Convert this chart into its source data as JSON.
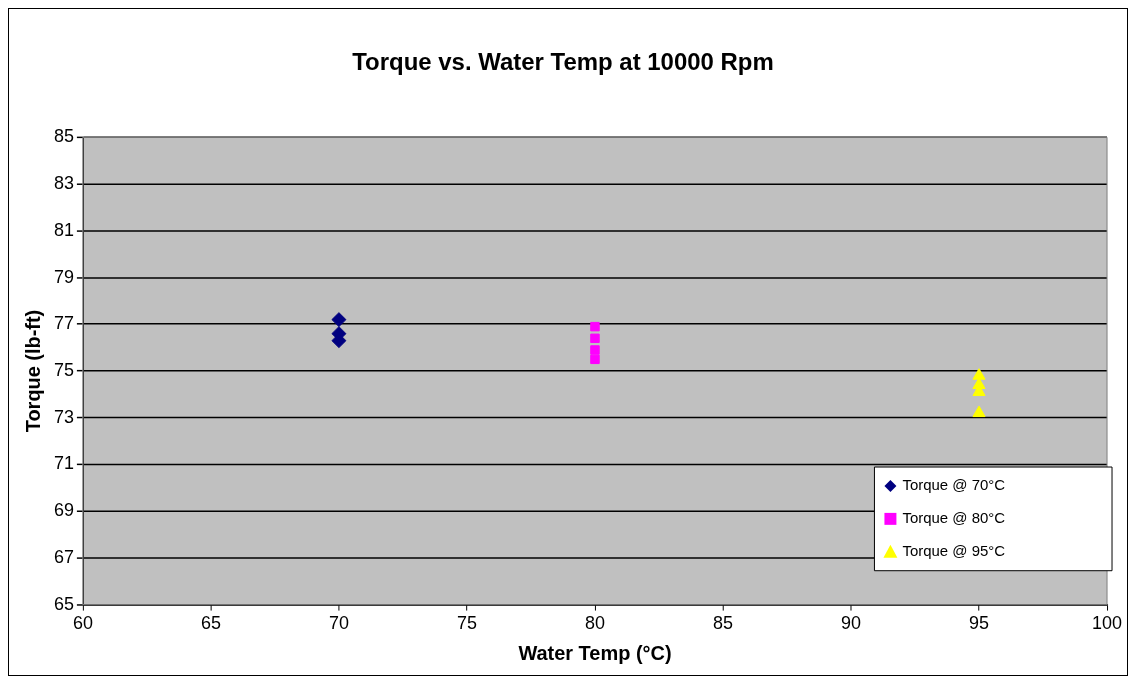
{
  "chart_data": {
    "type": "scatter",
    "title": "Torque vs. Water Temp at 10000 Rpm",
    "xlabel": "Water Temp (°C)",
    "ylabel": "Torque (lb-ft)",
    "xlim": [
      60,
      100
    ],
    "xticks": [
      60,
      65,
      70,
      75,
      80,
      85,
      90,
      95,
      100
    ],
    "ylim": [
      65,
      85
    ],
    "yticks": [
      65,
      67,
      69,
      71,
      73,
      75,
      77,
      79,
      81,
      83,
      85
    ],
    "grid": "y",
    "legend": "bottom right",
    "series": [
      {
        "name": "Torque @ 70°C",
        "color": "#000080",
        "marker": "diamond",
        "x": [
          70,
          70,
          70
        ],
        "values": [
          77.2,
          76.6,
          76.3
        ]
      },
      {
        "name": "Torque @ 80°C",
        "color": "#ff00ff",
        "marker": "square",
        "x": [
          80,
          80,
          80,
          80
        ],
        "values": [
          76.9,
          76.4,
          75.9,
          75.5
        ]
      },
      {
        "name": "Torque @ 95°C",
        "color": "#ffff00",
        "marker": "triangle",
        "x": [
          95,
          95,
          95,
          95
        ],
        "values": [
          74.8,
          74.4,
          74.1,
          73.2
        ]
      }
    ]
  }
}
